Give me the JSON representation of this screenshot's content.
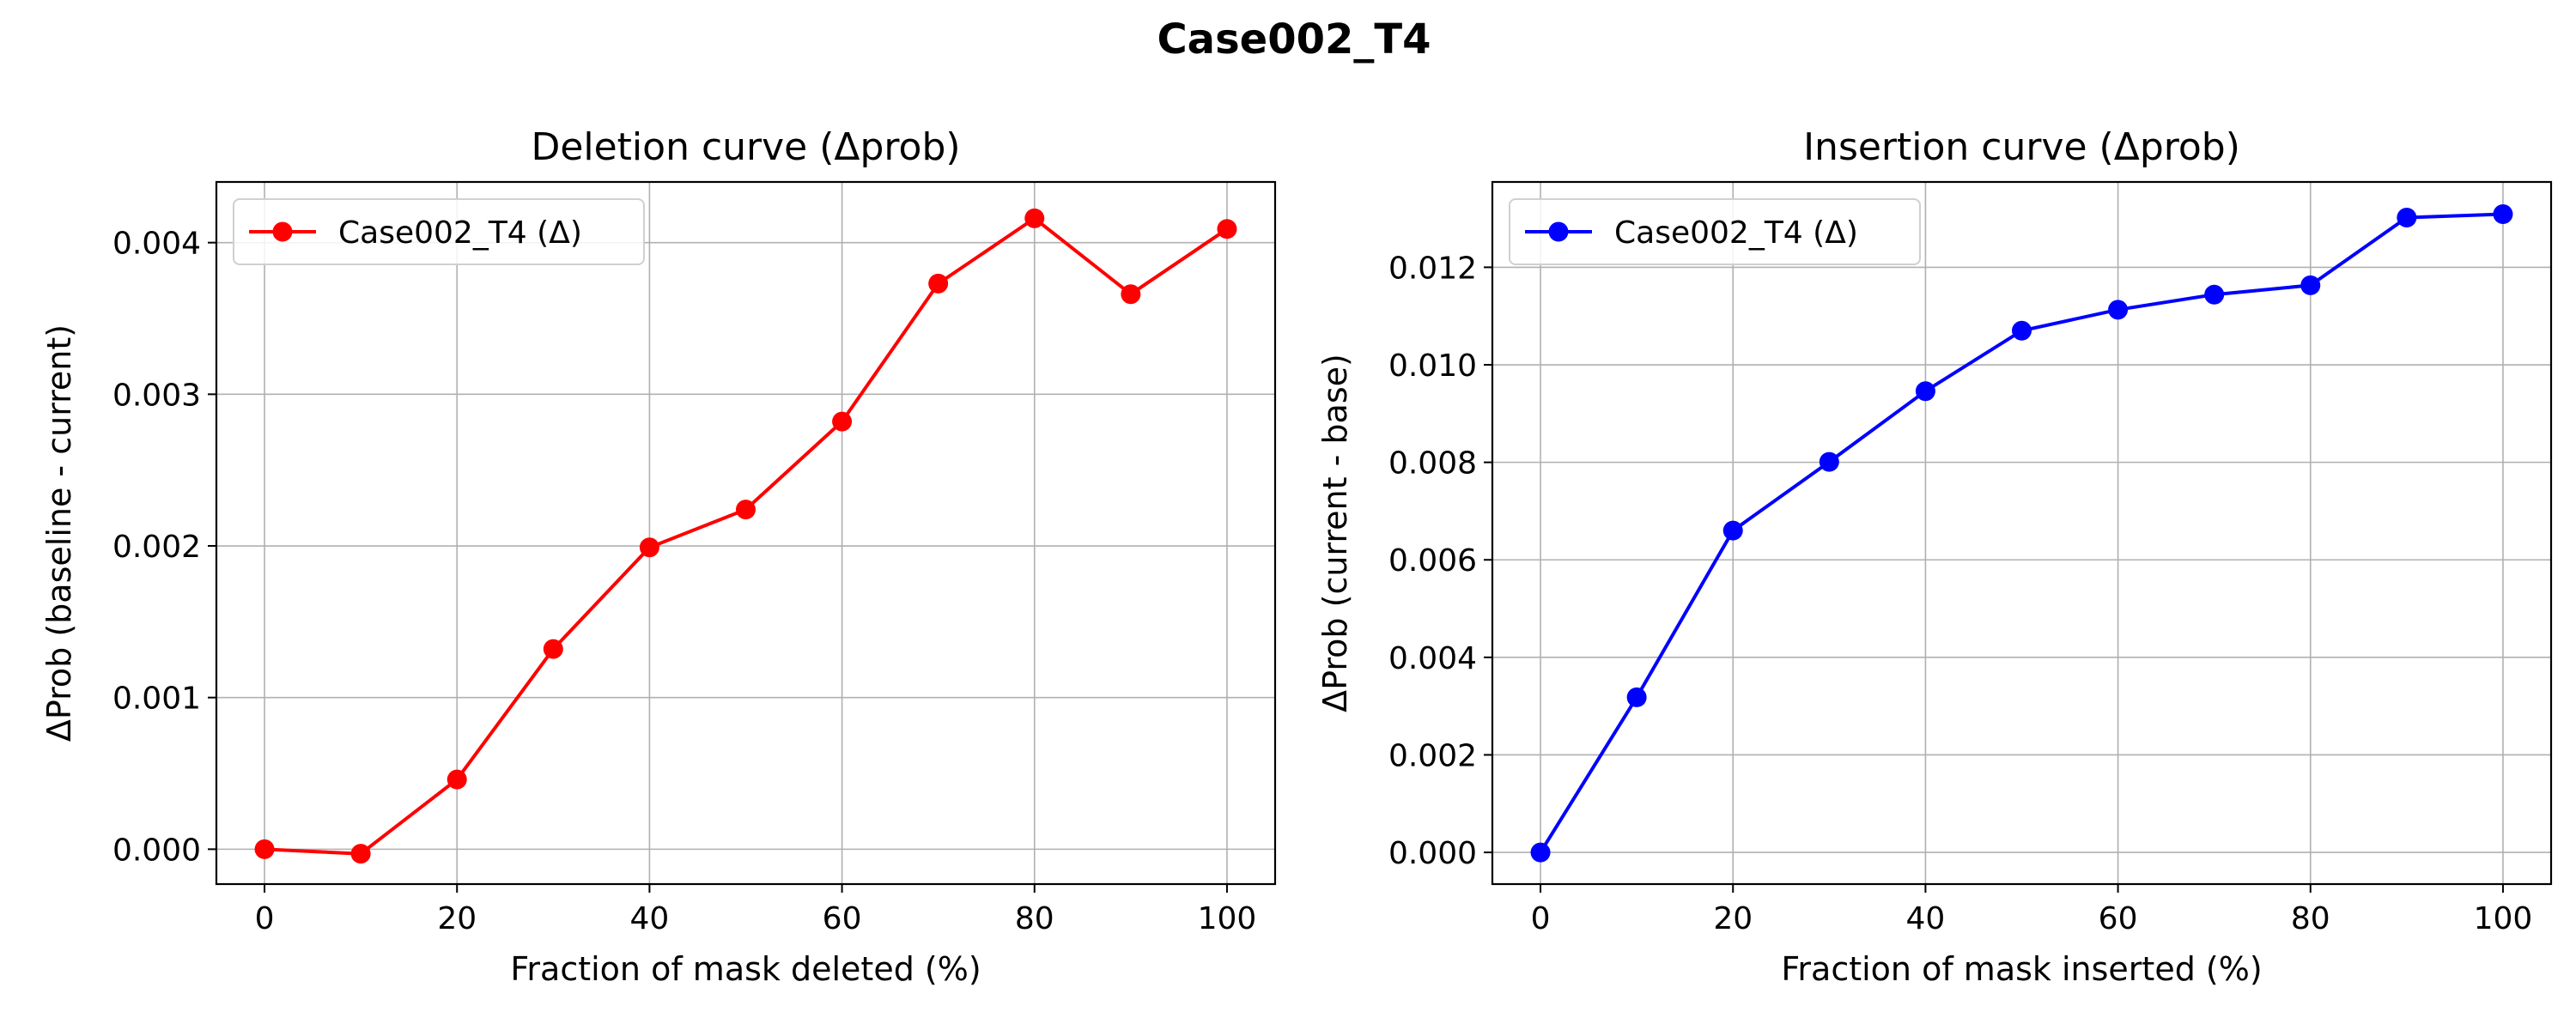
{
  "figure": {
    "title": "Case002_T4"
  },
  "chart_data": [
    {
      "type": "line",
      "title": "Deletion curve (Δprob)",
      "xlabel": "Fraction of mask deleted (%)",
      "ylabel": "ΔProb (baseline - current)",
      "x": [
        0,
        10,
        20,
        30,
        40,
        50,
        60,
        70,
        80,
        90,
        100
      ],
      "series": [
        {
          "name": "Case002_T4 (Δ)",
          "color": "#ff0000",
          "marker": "circle",
          "values": [
            0.0,
            -3e-05,
            0.00046,
            0.00132,
            0.00199,
            0.00224,
            0.00282,
            0.00373,
            0.00416,
            0.00366,
            0.00409
          ]
        }
      ],
      "xlim": [
        -5,
        105
      ],
      "ylim": [
        -0.00023,
        0.0044
      ],
      "xticks": [
        0,
        20,
        40,
        60,
        80,
        100
      ],
      "xtick_labels": [
        "0",
        "20",
        "40",
        "60",
        "80",
        "100"
      ],
      "yticks": [
        0,
        0.001,
        0.002,
        0.003,
        0.004
      ],
      "ytick_labels": [
        "0.000",
        "0.001",
        "0.002",
        "0.003",
        "0.004"
      ],
      "grid": true,
      "legend_position": "top-left"
    },
    {
      "type": "line",
      "title": "Insertion curve (Δprob)",
      "xlabel": "Fraction of mask inserted (%)",
      "ylabel": "ΔProb (current - base)",
      "x": [
        0,
        10,
        20,
        30,
        40,
        50,
        60,
        70,
        80,
        90,
        100
      ],
      "series": [
        {
          "name": "Case002_T4 (Δ)",
          "color": "#0000ff",
          "marker": "circle",
          "values": [
            0.0,
            0.00318,
            0.0066,
            0.00801,
            0.00946,
            0.0107,
            0.01113,
            0.01144,
            0.01163,
            0.01302,
            0.01309
          ]
        }
      ],
      "xlim": [
        -5,
        105
      ],
      "ylim": [
        -0.00065,
        0.01375
      ],
      "xticks": [
        0,
        20,
        40,
        60,
        80,
        100
      ],
      "xtick_labels": [
        "0",
        "20",
        "40",
        "60",
        "80",
        "100"
      ],
      "yticks": [
        0,
        0.002,
        0.004,
        0.006,
        0.008,
        0.01,
        0.012
      ],
      "ytick_labels": [
        "0.000",
        "0.002",
        "0.004",
        "0.006",
        "0.008",
        "0.010",
        "0.012"
      ],
      "grid": true,
      "legend_position": "top-left"
    }
  ]
}
